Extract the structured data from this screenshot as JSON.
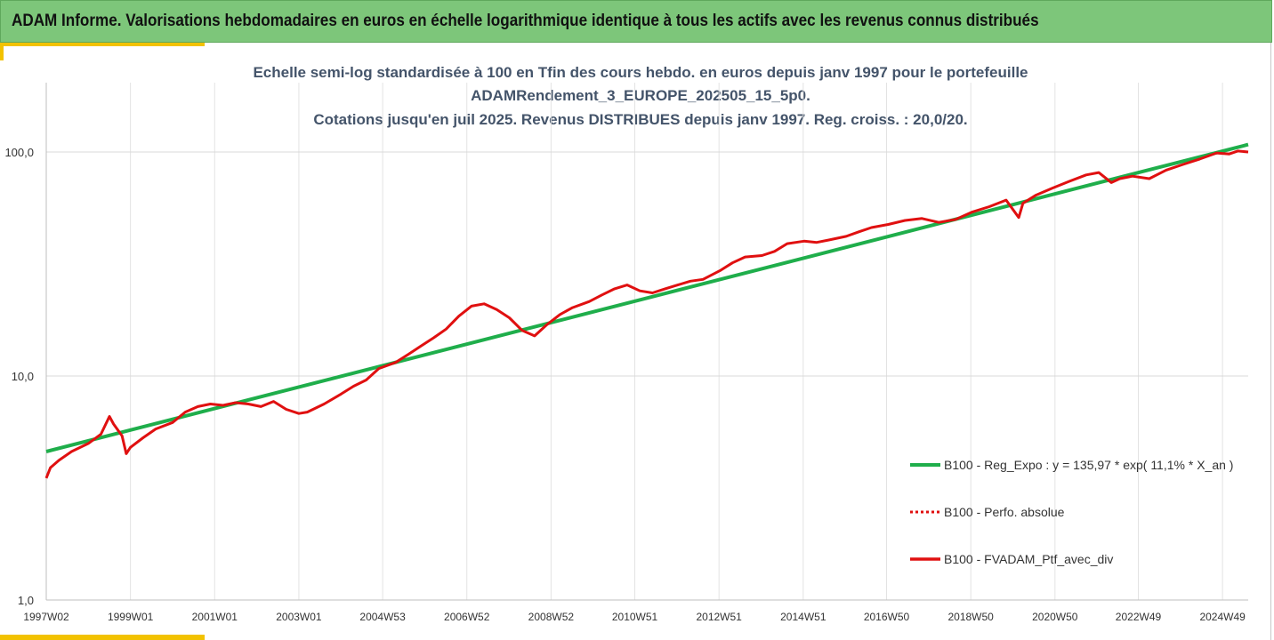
{
  "banner": {
    "title": "ADAM Informe. Valorisations hebdomadaires en euros en échelle logarithmique identique à tous les actifs avec les revenus connus distribués"
  },
  "colors": {
    "banner": "#7dc67a",
    "accent": "#f2c200",
    "title_text": "#44546a",
    "regression": "#1fae4b",
    "portfolio": "#e01010"
  },
  "chart_data": {
    "type": "line",
    "title_lines": [
      "Echelle semi-log standardisée à 100 en Tfin des cours hebdo.  en euros depuis janv 1997 pour le portefeuille",
      "ADAMRendement_3_EUROPE_202505_15_5p0.",
      "Cotations  jusqu'en juil 2025. Revenus DISTRIBUES depuis janv 1997. Reg. croiss. : 20,0/20."
    ],
    "y_scale": "log",
    "ylim": [
      1,
      200
    ],
    "y_ticks": [
      1,
      10,
      100
    ],
    "y_tick_labels": [
      "1,0",
      "10,0",
      "100,0"
    ],
    "xlim": [
      1997.0,
      2025.55
    ],
    "x_ticks": [
      1997.0,
      1999.0,
      2001.0,
      2003.0,
      2004.99,
      2006.99,
      2008.99,
      2010.98,
      2012.98,
      2014.98,
      2016.96,
      2018.96,
      2020.96,
      2022.94,
      2024.94
    ],
    "x_tick_labels": [
      "1997W02",
      "1999W01",
      "2001W01",
      "2003W01",
      "2004W53",
      "2006W52",
      "2008W52",
      "2010W51",
      "2012W51",
      "2014W51",
      "2016W50",
      "2018W50",
      "2020W50",
      "2022W49",
      "2024W49"
    ],
    "grid": true,
    "legend_position": "right",
    "legend": [
      "B100 - Reg_Expo : y = 135,97 * exp( 11,1% *  X_an )",
      "B100 - Perfo. absolue",
      "B100 - FVADAM_Ptf_avec_div"
    ],
    "series": [
      {
        "name": "B100 - Reg_Expo : y = 135,97 * exp( 11,1% *  X_an )",
        "style": "solid",
        "x": [
          1997.0,
          2025.55
        ],
        "y": [
          4.6,
          108
        ]
      },
      {
        "name": "B100 - Perfo. absolue",
        "style": "dotted",
        "x": [],
        "y": []
      },
      {
        "name": "B100 - FVADAM_Ptf_avec_div",
        "style": "solid",
        "x": [
          1997.0,
          1997.1,
          1997.3,
          1997.6,
          1998.0,
          1998.3,
          1998.5,
          1998.6,
          1998.8,
          1998.9,
          1999.0,
          1999.3,
          1999.6,
          2000.0,
          2000.3,
          2000.6,
          2000.9,
          2001.2,
          2001.5,
          2001.8,
          2002.1,
          2002.4,
          2002.7,
          2003.0,
          2003.2,
          2003.6,
          2004.0,
          2004.3,
          2004.6,
          2004.9,
          2005.3,
          2005.6,
          2005.9,
          2006.2,
          2006.5,
          2006.8,
          2007.1,
          2007.4,
          2007.7,
          2008.0,
          2008.3,
          2008.6,
          2008.9,
          2009.2,
          2009.5,
          2009.9,
          2010.2,
          2010.5,
          2010.8,
          2011.1,
          2011.4,
          2011.7,
          2012.0,
          2012.3,
          2012.6,
          2013.0,
          2013.3,
          2013.6,
          2014.0,
          2014.3,
          2014.6,
          2015.0,
          2015.3,
          2015.6,
          2016.0,
          2016.3,
          2016.6,
          2017.0,
          2017.4,
          2017.8,
          2018.2,
          2018.6,
          2019.0,
          2019.4,
          2019.8,
          2020.1,
          2020.2,
          2020.5,
          2020.9,
          2021.3,
          2021.7,
          2022.0,
          2022.3,
          2022.5,
          2022.8,
          2023.2,
          2023.6,
          2024.0,
          2024.4,
          2024.8,
          2025.1,
          2025.3,
          2025.55
        ],
        "y": [
          3.5,
          3.9,
          4.2,
          4.6,
          5.0,
          5.5,
          6.6,
          6.1,
          5.4,
          4.5,
          4.8,
          5.3,
          5.8,
          6.2,
          6.9,
          7.3,
          7.5,
          7.4,
          7.6,
          7.5,
          7.3,
          7.7,
          7.1,
          6.8,
          6.9,
          7.5,
          8.3,
          9.0,
          9.6,
          10.8,
          11.5,
          12.5,
          13.6,
          14.8,
          16.2,
          18.5,
          20.5,
          21.0,
          19.8,
          18.2,
          16.0,
          15.1,
          17.0,
          18.8,
          20.2,
          21.5,
          23.0,
          24.5,
          25.5,
          24.0,
          23.5,
          24.5,
          25.5,
          26.5,
          27.0,
          29.5,
          32.0,
          34.0,
          34.5,
          36.0,
          39.0,
          40.0,
          39.5,
          40.5,
          42.0,
          44.0,
          46.0,
          47.5,
          49.5,
          50.5,
          48.5,
          50.0,
          54.0,
          57.0,
          61.0,
          51.0,
          59.0,
          64.0,
          69.0,
          74.0,
          79.0,
          81.0,
          73.0,
          76.0,
          78.0,
          76.0,
          83.0,
          88.0,
          93.0,
          99.0,
          98.0,
          101.0,
          100.0
        ]
      }
    ]
  }
}
